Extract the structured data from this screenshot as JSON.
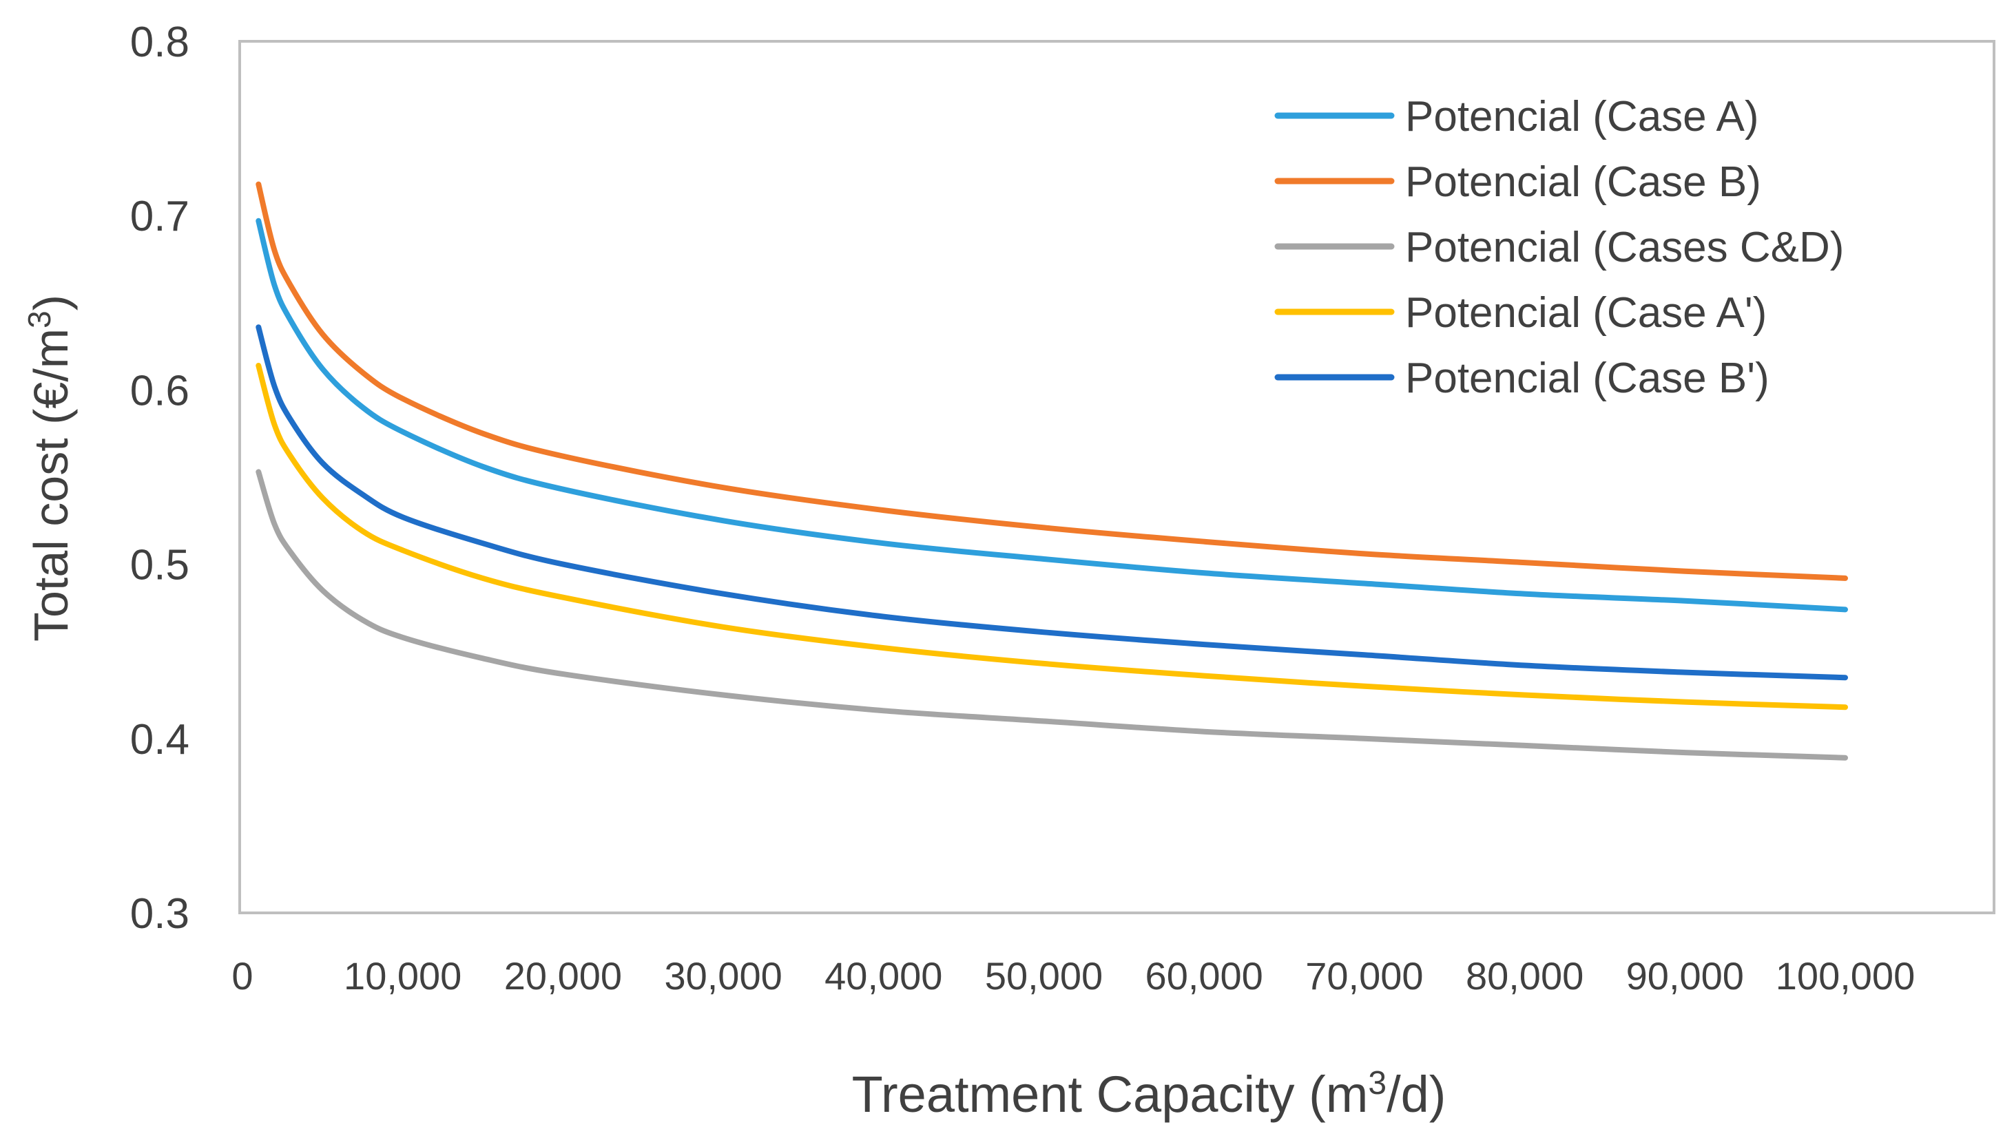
{
  "chart_data": {
    "type": "line",
    "title": "",
    "xlabel": "Treatment Capacity (m³/d)",
    "ylabel": "Total cost (€/m³)",
    "xlabel_parts": {
      "pre": "Treatment Capacity (m",
      "sup": "3",
      "post": "/d)"
    },
    "ylabel_parts": {
      "pre": "Total cost (€/m",
      "sup": "3",
      "post": ")"
    },
    "xlim": [
      0,
      110000
    ],
    "ylim": [
      0.3,
      0.8
    ],
    "x_ticks": [
      0,
      10000,
      20000,
      30000,
      40000,
      50000,
      60000,
      70000,
      80000,
      90000,
      100000
    ],
    "x_tick_labels": [
      "0",
      "10,000",
      "20,000",
      "30,000",
      "40,000",
      "50,000",
      "60,000",
      "70,000",
      "80,000",
      "90,000",
      "100,000"
    ],
    "y_ticks": [
      0.3,
      0.4,
      0.5,
      0.6,
      0.7,
      0.8
    ],
    "y_tick_labels": [
      "0.3",
      "0.4",
      "0.5",
      "0.6",
      "0.7",
      "0.8"
    ],
    "grid": false,
    "legend_position": "top-right",
    "x": [
      1000,
      2000,
      3000,
      5000,
      7500,
      10000,
      15000,
      20000,
      30000,
      40000,
      50000,
      60000,
      70000,
      80000,
      90000,
      100000
    ],
    "series": [
      {
        "name": "Potencial (Case A)",
        "color": "#2e9fdc",
        "values": [
          0.697,
          0.66,
          0.64,
          0.612,
          0.59,
          0.576,
          0.556,
          0.543,
          0.525,
          0.512,
          0.503,
          0.495,
          0.489,
          0.483,
          0.479,
          0.474
        ]
      },
      {
        "name": "Potencial (Case B)",
        "color": "#f07a2a",
        "values": [
          0.718,
          0.68,
          0.66,
          0.632,
          0.61,
          0.595,
          0.575,
          0.562,
          0.544,
          0.531,
          0.521,
          0.513,
          0.506,
          0.501,
          0.496,
          0.492
        ]
      },
      {
        "name": "Potencial (Cases C&D)",
        "color": "#a5a5a5",
        "values": [
          0.553,
          0.523,
          0.507,
          0.485,
          0.468,
          0.458,
          0.446,
          0.437,
          0.425,
          0.416,
          0.41,
          0.404,
          0.4,
          0.396,
          0.392,
          0.389
        ]
      },
      {
        "name": "Potencial (Case A')",
        "color": "#ffc000",
        "values": [
          0.614,
          0.58,
          0.562,
          0.538,
          0.519,
          0.508,
          0.492,
          0.481,
          0.464,
          0.452,
          0.443,
          0.436,
          0.43,
          0.425,
          0.421,
          0.418
        ]
      },
      {
        "name": "Potencial (Case B')",
        "color": "#1f6ec8",
        "values": [
          0.636,
          0.602,
          0.583,
          0.558,
          0.54,
          0.527,
          0.512,
          0.5,
          0.483,
          0.47,
          0.461,
          0.454,
          0.448,
          0.442,
          0.438,
          0.435
        ]
      }
    ]
  }
}
